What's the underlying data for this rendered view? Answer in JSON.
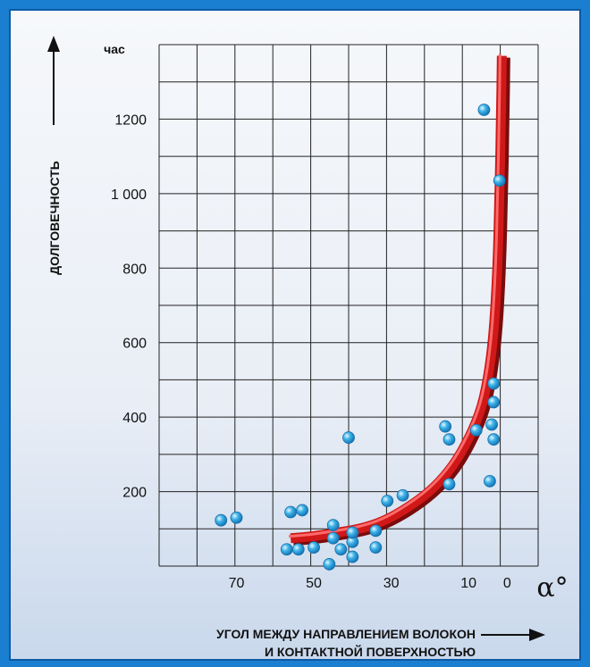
{
  "chart_data": {
    "type": "scatter",
    "ylabel": "ДОЛГОВЕЧНОСТЬ",
    "yunit": "час",
    "xlabel_line1": "УГОЛ МЕЖДУ НАПРАВЛЕНИЕМ ВОЛОКОН",
    "xlabel_line2": "И КОНТАКТНОЙ ПОВЕРХНОСТЬЮ",
    "xunit": "α°",
    "x_reversed": true,
    "xlim": [
      -8,
      90
    ],
    "ylim": [
      0,
      1400
    ],
    "xticks": [
      70,
      50,
      30,
      10,
      0
    ],
    "yticks": [
      200,
      400,
      600,
      800,
      1000,
      1200
    ],
    "ytick_labels": [
      "200",
      "400",
      "600",
      "800",
      "1 000",
      "1200"
    ],
    "grid": true,
    "colors": {
      "points": "#3fb3e8",
      "curve": "#d01818",
      "border": "#1a7fd0"
    },
    "points": [
      {
        "x": 74,
        "y": 123
      },
      {
        "x": 70,
        "y": 130
      },
      {
        "x": 56,
        "y": 145
      },
      {
        "x": 53,
        "y": 150
      },
      {
        "x": 57,
        "y": 45
      },
      {
        "x": 54,
        "y": 45
      },
      {
        "x": 50,
        "y": 50
      },
      {
        "x": 45,
        "y": 75
      },
      {
        "x": 45,
        "y": 110
      },
      {
        "x": 43,
        "y": 45
      },
      {
        "x": 46,
        "y": 5
      },
      {
        "x": 40,
        "y": 25
      },
      {
        "x": 40,
        "y": 65
      },
      {
        "x": 40,
        "y": 90
      },
      {
        "x": 41,
        "y": 345
      },
      {
        "x": 34,
        "y": 95
      },
      {
        "x": 34,
        "y": 50
      },
      {
        "x": 31,
        "y": 175
      },
      {
        "x": 27,
        "y": 190
      },
      {
        "x": 16,
        "y": 375
      },
      {
        "x": 15,
        "y": 340
      },
      {
        "x": 15,
        "y": 220
      },
      {
        "x": 8,
        "y": 365
      },
      {
        "x": 4.5,
        "y": 228
      },
      {
        "x": 4,
        "y": 380
      },
      {
        "x": 3.5,
        "y": 340
      },
      {
        "x": 3.5,
        "y": 440
      },
      {
        "x": 3.5,
        "y": 490
      },
      {
        "x": 6,
        "y": 1225
      },
      {
        "x": 2,
        "y": 1035
      }
    ],
    "trend_curve": [
      {
        "x": 56,
        "y": 75
      },
      {
        "x": 50,
        "y": 80
      },
      {
        "x": 44,
        "y": 90
      },
      {
        "x": 38,
        "y": 100
      },
      {
        "x": 32,
        "y": 120
      },
      {
        "x": 26,
        "y": 155
      },
      {
        "x": 20,
        "y": 200
      },
      {
        "x": 15,
        "y": 255
      },
      {
        "x": 11,
        "y": 320
      },
      {
        "x": 7,
        "y": 410
      },
      {
        "x": 5,
        "y": 500
      },
      {
        "x": 3.5,
        "y": 620
      },
      {
        "x": 2.5,
        "y": 800
      },
      {
        "x": 2,
        "y": 1000
      },
      {
        "x": 1.6,
        "y": 1200
      },
      {
        "x": 1.4,
        "y": 1370
      }
    ]
  }
}
